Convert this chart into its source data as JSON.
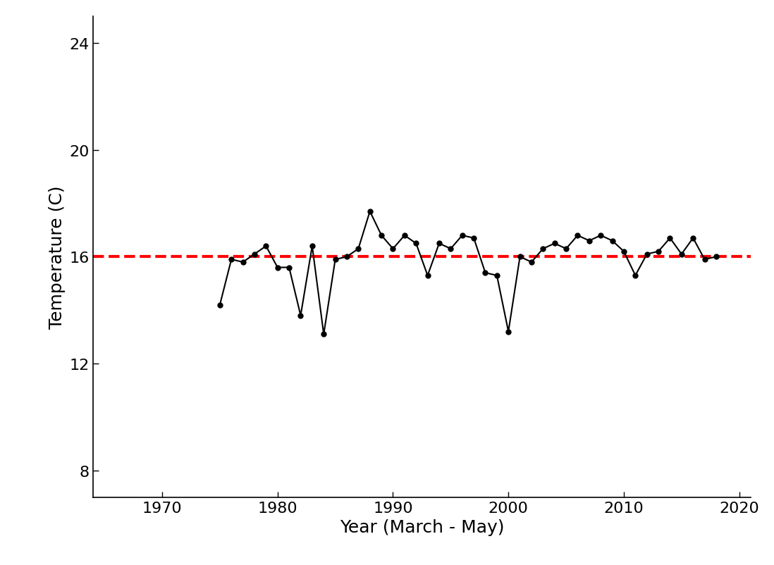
{
  "years": [
    1975,
    1976,
    1977,
    1978,
    1979,
    1980,
    1981,
    1982,
    1983,
    1984,
    1985,
    1986,
    1987,
    1988,
    1989,
    1990,
    1991,
    1992,
    1993,
    1994,
    1995,
    1996,
    1997,
    1998,
    1999,
    2000,
    2001,
    2002,
    2003,
    2004,
    2005,
    2006,
    2007,
    2008,
    2009,
    2010,
    2011,
    2012,
    2013,
    2014,
    2015,
    2016,
    2017,
    2018
  ],
  "temps": [
    14.2,
    15.9,
    15.8,
    16.1,
    16.4,
    15.6,
    15.6,
    13.8,
    16.4,
    13.1,
    15.9,
    16.0,
    16.3,
    17.7,
    16.8,
    16.3,
    16.8,
    16.5,
    15.3,
    16.5,
    16.3,
    16.8,
    16.7,
    15.4,
    15.3,
    13.2,
    16.0,
    15.8,
    16.3,
    16.5,
    16.3,
    16.8,
    16.6,
    16.8,
    16.6,
    16.2,
    15.3,
    16.1,
    16.2,
    16.7,
    16.1,
    16.7,
    15.9,
    16.0
  ],
  "mean_value": 16.0,
  "mean_color": "#FF0000",
  "line_color": "#000000",
  "marker_color": "#000000",
  "xlabel": "Year (March - May)",
  "ylabel": "Temperature (C)",
  "xlim": [
    1964,
    2021
  ],
  "ylim": [
    7,
    25
  ],
  "yticks": [
    8,
    12,
    16,
    20,
    24
  ],
  "xticks": [
    1970,
    1980,
    1990,
    2000,
    2010,
    2020
  ],
  "background_color": "#ffffff",
  "xlabel_fontsize": 18,
  "ylabel_fontsize": 18,
  "tick_fontsize": 16,
  "line_width": 1.5,
  "marker_size": 5,
  "dashed_linewidth": 3.0
}
